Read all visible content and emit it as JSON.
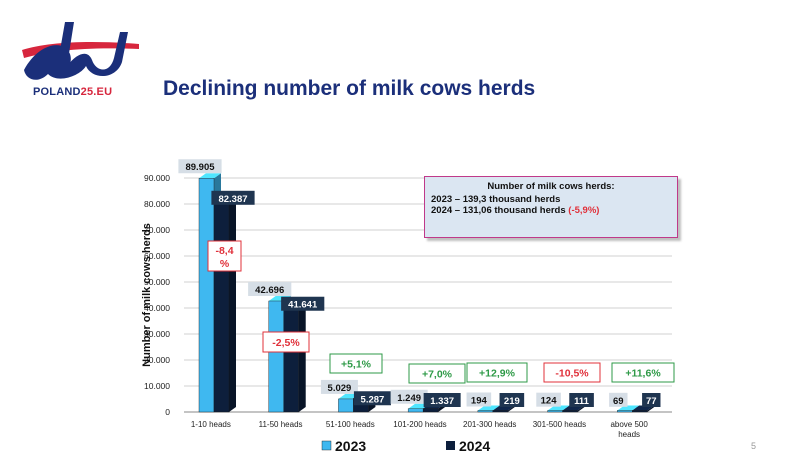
{
  "logo": {
    "name_main": "POLAND",
    "name_accent": "25.EU"
  },
  "page": {
    "title": "Declining number of milk cows herds",
    "number": "5"
  },
  "colors": {
    "title": "#1b2f7a",
    "series_2023": "#3fb8f0",
    "series_2024": "#0d1f3c",
    "positive": "#2e9a47",
    "negative": "#e0303a"
  },
  "info_box": {
    "title": "Number of milk cows herds:",
    "line_2023": "2023 – 139,3 thousand herds",
    "line_2024_prefix": "2024 – 131,06 thousand herds ",
    "line_2024_change": "(-5,9%)"
  },
  "chart_data": {
    "type": "bar",
    "ylabel": "Number of milk cows herds",
    "ylim": [
      0,
      90000
    ],
    "y_ticks": [
      "0",
      "10.000",
      "20.000",
      "30.000",
      "40.000",
      "50.000",
      "60.000",
      "70.000",
      "80.000",
      "90.000"
    ],
    "grid": true,
    "legend_position": "bottom",
    "categories": [
      "1-10 heads",
      "11-50 heads",
      "51-100 heads",
      "101-200 heads",
      "201-300 heads",
      "301-500 heads",
      "above 500 heads"
    ],
    "series": [
      {
        "name": "2023",
        "values": [
          89905,
          42696,
          5029,
          1249,
          194,
          124,
          69
        ],
        "labels": [
          "89.905",
          "42.696",
          "5.029",
          "1.249",
          "194",
          "124",
          "69"
        ]
      },
      {
        "name": "2024",
        "values": [
          82387,
          41641,
          5287,
          1337,
          219,
          111,
          77
        ],
        "labels": [
          "82.387",
          "41.641",
          "5.287",
          "1.337",
          "219",
          "111",
          "77"
        ]
      }
    ],
    "changes": [
      "-8,4%",
      "-2,5%",
      "+5,1%",
      "+7,0%",
      "+12,9%",
      "-10,5%",
      "+11,6%"
    ]
  }
}
